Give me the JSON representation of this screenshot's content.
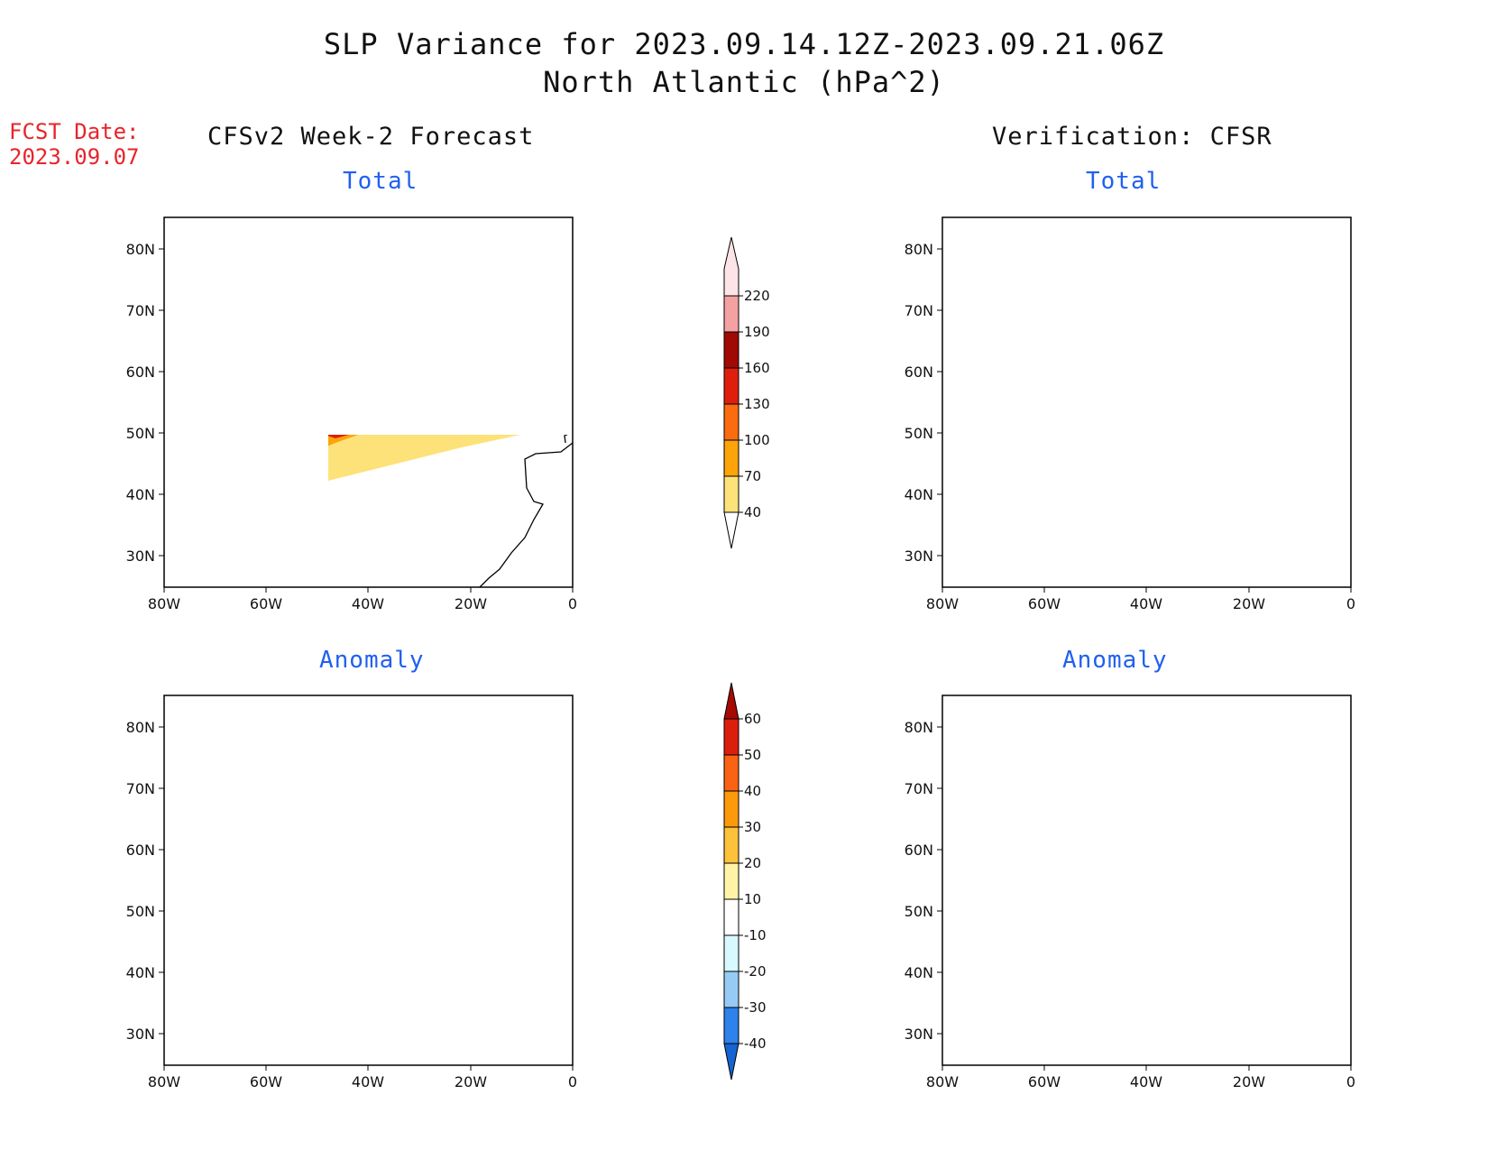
{
  "header": {
    "title_line1": "SLP Variance for 2023.09.14.12Z-2023.09.21.06Z",
    "title_line2": "North Atlantic (hPa^2)"
  },
  "fcst_date": {
    "label": "FCST Date:",
    "value": "2023.09.07"
  },
  "columns": {
    "left_title": "CFSv2 Week-2 Forecast",
    "right_title": "Verification: CFSR"
  },
  "panels": [
    {
      "id": "forecast-total",
      "title": "Total"
    },
    {
      "id": "verification-total",
      "title": "Total"
    },
    {
      "id": "forecast-anomaly",
      "title": "Anomaly"
    },
    {
      "id": "verification-anomaly",
      "title": "Anomaly"
    }
  ],
  "axes": {
    "lat_ticks": [
      "80N",
      "70N",
      "60N",
      "50N",
      "40N",
      "30N"
    ],
    "lon_ticks": [
      "80W",
      "60W",
      "40W",
      "20W",
      "0"
    ]
  },
  "colorbar_total": {
    "levels": [
      "40",
      "70",
      "100",
      "130",
      "160",
      "190",
      "220"
    ],
    "colors": [
      "#fde27a",
      "#fca40a",
      "#fb6b0f",
      "#df1f0c",
      "#a10905",
      "#f4a1a2",
      "#fde4e6"
    ]
  },
  "colorbar_anomaly": {
    "levels": [
      "-40",
      "-30",
      "-20",
      "-10",
      "10",
      "20",
      "30",
      "40",
      "50",
      "60"
    ],
    "colors": [
      "#1464d2",
      "#2d82eb",
      "#96cbf5",
      "#d7f9ff",
      "#ffffff",
      "#fff4a6",
      "#fdc13a",
      "#fc9a0b",
      "#fb6214",
      "#dc1e0c",
      "#a50a05"
    ]
  }
}
